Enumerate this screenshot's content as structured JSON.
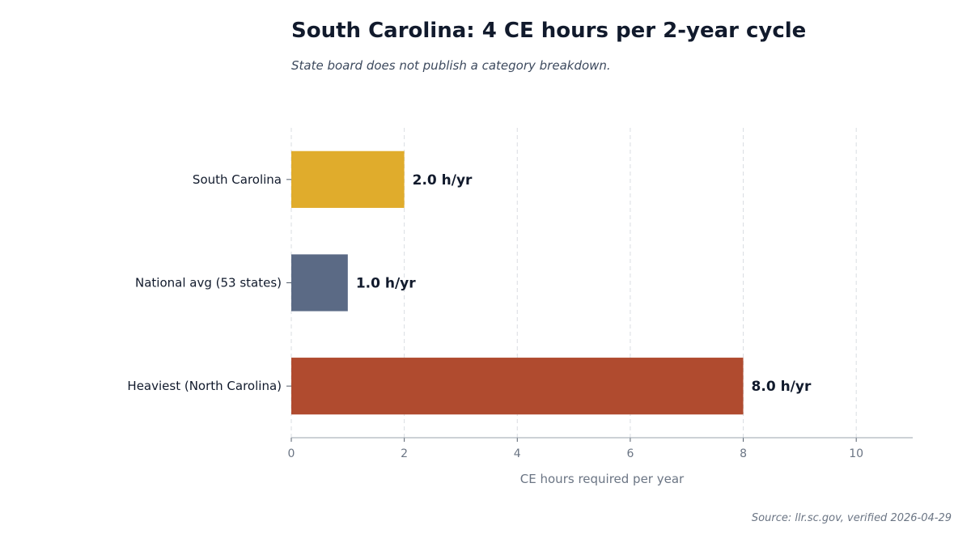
{
  "chart_data": {
    "type": "bar",
    "orientation": "horizontal",
    "title": "South Carolina: 4 CE hours per 2-year cycle",
    "subtitle": "State board does not publish a category breakdown.",
    "xlabel": "CE hours required per year",
    "ylabel": "",
    "xlim": [
      0,
      11
    ],
    "x_ticks": [
      0,
      2,
      4,
      6,
      8,
      10
    ],
    "grid": "vertical-dashed",
    "categories": [
      "South Carolina",
      "National avg (53 states)",
      "Heaviest (North Carolina)"
    ],
    "values": [
      2.0,
      1.0,
      8.0
    ],
    "value_labels": [
      "2.0 h/yr",
      "1.0 h/yr",
      "8.0 h/yr"
    ],
    "colors": [
      "#e0ac2c",
      "#5b6a85",
      "#b04b2f"
    ]
  },
  "source": "Source: llr.sc.gov, verified 2026-04-29"
}
